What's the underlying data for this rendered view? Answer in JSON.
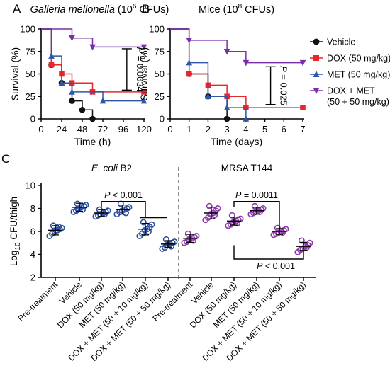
{
  "colors": {
    "vehicle": "#111111",
    "dox": "#e8262b",
    "met": "#2e57a6",
    "doxmet": "#7a2fa8",
    "ecoli_marker": "#2f4f9e",
    "mrsa_marker": "#8b3aa8"
  },
  "chart_data": [
    {
      "id": "A",
      "type": "line",
      "step": true,
      "panel_label": "A",
      "title_italic": "Galleria mellonella",
      "title_rest": " (10",
      "title_exp": "6",
      "title_end": " CFUs)",
      "xlabel": "Time (h)",
      "ylabel": "Survival (%)",
      "xlim": [
        0,
        120
      ],
      "ylim": [
        0,
        100
      ],
      "xticks": [
        0,
        24,
        48,
        72,
        96,
        120
      ],
      "yticks": [
        0,
        25,
        50,
        75,
        100
      ],
      "series": [
        {
          "key": "vehicle",
          "name": "Vehicle",
          "marker": "circle",
          "x": [
            0,
            12,
            24,
            36,
            48,
            60
          ],
          "y": [
            100,
            60,
            40,
            20,
            10,
            0
          ]
        },
        {
          "key": "dox",
          "name": "DOX (50 mg/kg)",
          "marker": "square",
          "x": [
            0,
            12,
            24,
            36,
            60,
            120
          ],
          "y": [
            100,
            60,
            50,
            40,
            30,
            30
          ]
        },
        {
          "key": "met",
          "name": "MET (50 mg/kg)",
          "marker": "triangle",
          "x": [
            0,
            12,
            24,
            36,
            72,
            120
          ],
          "y": [
            100,
            70,
            40,
            30,
            20,
            20
          ]
        },
        {
          "key": "doxmet",
          "name": "DOX + MET (50 + 50 mg/kg)",
          "marker": "tri-down",
          "x": [
            0,
            36,
            60,
            120
          ],
          "y": [
            100,
            90,
            80,
            80
          ]
        }
      ],
      "annotation": {
        "text": "P = 0.0034",
        "x": 100,
        "y_top": 78,
        "y_bottom": 32
      }
    },
    {
      "id": "B",
      "type": "line",
      "step": true,
      "panel_label": "B",
      "title_rest": "Mice (10",
      "title_exp": "8",
      "title_end": " CFUs)",
      "xlabel": "Time (days)",
      "ylabel": "Survival (%)",
      "xlim": [
        0,
        7
      ],
      "ylim": [
        0,
        100
      ],
      "xticks": [
        0,
        1,
        2,
        3,
        4,
        5,
        6,
        7
      ],
      "yticks": [
        0,
        25,
        50,
        75,
        100
      ],
      "series": [
        {
          "key": "vehicle",
          "name": "Vehicle",
          "marker": "circle",
          "x": [
            0,
            1,
            2,
            3
          ],
          "y": [
            100,
            50,
            25,
            0
          ]
        },
        {
          "key": "dox",
          "name": "DOX (50 mg/kg)",
          "marker": "square",
          "x": [
            0,
            1,
            2,
            3,
            4,
            7
          ],
          "y": [
            100,
            50,
            37.5,
            25,
            12.5,
            12.5
          ]
        },
        {
          "key": "met",
          "name": "MET (50 mg/kg)",
          "marker": "triangle",
          "x": [
            0,
            1,
            2,
            3,
            4
          ],
          "y": [
            100,
            62.5,
            25,
            12.5,
            0
          ]
        },
        {
          "key": "doxmet",
          "name": "DOX + MET (50 + 50 mg/kg)",
          "marker": "tri-down",
          "x": [
            0,
            1,
            3,
            4,
            7
          ],
          "y": [
            100,
            87.5,
            75,
            62.5,
            62.5
          ]
        }
      ],
      "annotation": {
        "text": "P = 0.025",
        "x": 5.3,
        "y_top": 58,
        "y_bottom": 16
      }
    },
    {
      "id": "C",
      "type": "scatter",
      "panel_label": "C",
      "ylabel_pre": "Log",
      "ylabel_sub": "10",
      "ylabel_post": " CFU/thigh",
      "ylim": [
        2,
        10
      ],
      "yticks": [
        2,
        4,
        6,
        8,
        10
      ],
      "groups": [
        {
          "title_italic": "E. coli",
          "title_rest": " B2",
          "colorKey": "ecoli_marker",
          "categories": [
            "Pre-treatment",
            "Vehicle",
            "DOX (50 mg/kg)",
            "MET (50 mg/kg)",
            "DOX + MET (50 + 10 mg/kg)",
            "DOX + MET (50 + 50 mg/kg)"
          ],
          "means": [
            6.1,
            8.1,
            7.6,
            7.9,
            6.2,
            4.9
          ],
          "sd": [
            0.4,
            0.35,
            0.3,
            0.4,
            0.5,
            0.3
          ],
          "points": [
            [
              5.6,
              5.8,
              6.0,
              6.1,
              6.2,
              6.3,
              6.5,
              6.4
            ],
            [
              7.7,
              7.8,
              8.0,
              8.1,
              8.2,
              8.3,
              8.4,
              7.9
            ],
            [
              7.3,
              7.4,
              7.5,
              7.6,
              7.7,
              7.8,
              7.9,
              7.5
            ],
            [
              7.5,
              7.7,
              7.8,
              7.9,
              8.0,
              8.1,
              8.4,
              7.6
            ],
            [
              5.6,
              5.8,
              6.1,
              6.2,
              6.4,
              6.6,
              6.8,
              6.0
            ],
            [
              4.5,
              4.6,
              4.8,
              4.9,
              5.0,
              5.1,
              5.3,
              4.7
            ]
          ]
        },
        {
          "title_rest": "MRSA T144",
          "colorKey": "mrsa_marker",
          "categories": [
            "Pre-treatment",
            "Vehicle",
            "DOX (50 mg/kg)",
            "MET (50 mg/kg)",
            "DOX + MET (50 + 10 mg/kg)",
            "DOX + MET (50 + 50 mg/kg)"
          ],
          "means": [
            5.4,
            7.6,
            6.9,
            7.8,
            6.0,
            4.7
          ],
          "sd": [
            0.35,
            0.5,
            0.35,
            0.3,
            0.25,
            0.35
          ],
          "points": [
            [
              5.0,
              5.1,
              5.3,
              5.4,
              5.5,
              5.6,
              5.8,
              5.2
            ],
            [
              7.0,
              7.2,
              7.5,
              7.6,
              7.8,
              8.0,
              8.2,
              7.4
            ],
            [
              6.5,
              6.6,
              6.8,
              6.9,
              7.0,
              7.1,
              7.4,
              6.7
            ],
            [
              7.5,
              7.6,
              7.7,
              7.8,
              7.9,
              8.0,
              8.2,
              7.7
            ],
            [
              5.7,
              5.8,
              5.9,
              6.0,
              6.1,
              6.2,
              6.3,
              5.9
            ],
            [
              4.2,
              4.4,
              4.5,
              4.7,
              4.8,
              5.0,
              5.2,
              4.6
            ]
          ]
        }
      ],
      "comparisons": [
        {
          "text": "P < 0.001",
          "group": 0,
          "from": 2,
          "to": 4,
          "y": 8.6,
          "y_right": 7.2,
          "label_side": "top"
        },
        {
          "text": "P = 0.0011",
          "group": 1,
          "from": 2,
          "to": 4,
          "y": 8.6,
          "y_right": 6.1,
          "label_side": "top"
        },
        {
          "text": "P < 0.001",
          "group": 1,
          "from": 2,
          "to": 5,
          "y": 3.6,
          "label_side": "bottom"
        }
      ]
    }
  ],
  "legend": {
    "items": [
      {
        "key": "vehicle",
        "marker": "circle",
        "line1": "Vehicle"
      },
      {
        "key": "dox",
        "marker": "square",
        "line1": "DOX (50 mg/kg)"
      },
      {
        "key": "met",
        "marker": "triangle",
        "line1": "MET (50 mg/kg)"
      },
      {
        "key": "doxmet",
        "marker": "tri-down",
        "line1": "DOX + MET",
        "line2": "(50 + 50 mg/kg)"
      }
    ]
  }
}
